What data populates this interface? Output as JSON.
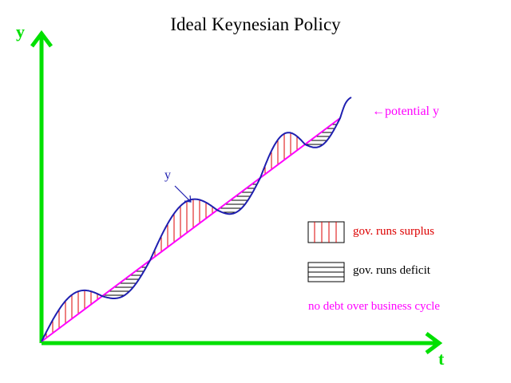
{
  "title": "Ideal Keynesian  Policy",
  "axes": {
    "y_label": "y",
    "x_label": "t",
    "color": "#00e000"
  },
  "labels": {
    "actual_output": "y",
    "potential_output": "potential y",
    "arrow_glyph": "←"
  },
  "legend": {
    "surplus": "gov. runs surplus",
    "deficit": "gov. runs deficit",
    "note": "no debt over business cycle"
  },
  "colors": {
    "axes": "#00e000",
    "potential_line": "#ff00ff",
    "actual_curve": "#1f1fb0",
    "surplus_hatch": "#dd0000",
    "deficit_hatch": "#000000",
    "title": "#000000"
  }
}
